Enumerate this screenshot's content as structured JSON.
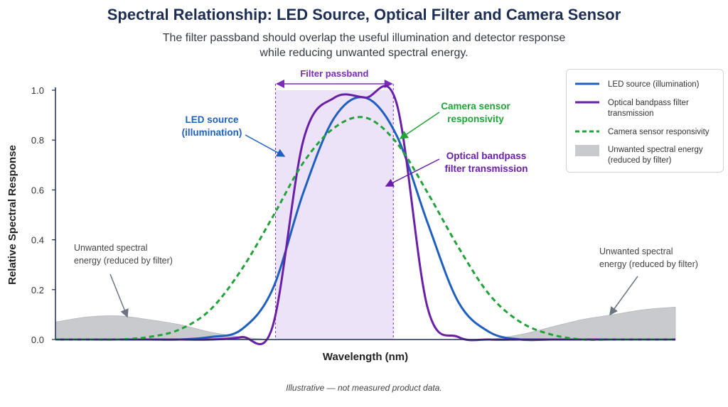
{
  "title": "Spectral Relationship: LED Source, Optical Filter and Camera Sensor",
  "subtitle_lines": [
    "The filter passband should overlap the useful illumination and detector response",
    "while reducing unwanted spectral energy."
  ],
  "footnote": "Illustrative — not measured product data.",
  "colors": {
    "led": "#1f5fbf",
    "filter": "#6a1fa8",
    "sensor": "#23a23a",
    "unwanted": "#c8cacd",
    "passband_fill": "#ece3f8",
    "passband_label": "#7a2bb8",
    "axis": "#1e2d52",
    "title": "#1e2d52"
  },
  "legend": {
    "items": [
      {
        "key": "led",
        "label": "LED source (illumination)",
        "style": "solid"
      },
      {
        "key": "filter",
        "label": "Optical bandpass filter transmission",
        "style": "solid"
      },
      {
        "key": "sensor",
        "label": "Camera sensor responsivity",
        "style": "dashed"
      },
      {
        "key": "unwanted",
        "label": "Unwanted spectral energy (reduced by filter)",
        "style": "area"
      }
    ]
  },
  "annotations": {
    "passband": "Filter passband",
    "led_lines": [
      "LED source",
      "(illumination)"
    ],
    "sensor_lines": [
      "Camera sensor",
      "responsivity"
    ],
    "filter_lines": [
      "Optical bandpass",
      "filter transmission"
    ],
    "unwanted_left_lines": [
      "Unwanted spectral",
      "energy (reduced by filter)"
    ],
    "unwanted_right_lines": [
      "Unwanted spectral",
      "energy (reduced by filter)"
    ]
  },
  "chart_data": {
    "type": "line",
    "title": "Spectral Relationship: LED Source, Optical Filter and Camera Sensor",
    "xlabel": "Wavelength (nm)",
    "ylabel": "Relative Spectral Response",
    "ylim": [
      0,
      1.0
    ],
    "yticks": [
      0.0,
      0.2,
      0.4,
      0.6,
      0.8,
      1.0
    ],
    "ytick_labels": [
      "0.0",
      "0.2",
      "0.4",
      "0.6",
      "0.8",
      "1.0"
    ],
    "x_tick_labels": [],
    "grid": false,
    "legend_position": "top-right",
    "x": [
      0.0,
      0.05,
      0.1,
      0.15,
      0.2,
      0.25,
      0.3,
      0.35,
      0.4,
      0.45,
      0.5,
      0.55,
      0.6,
      0.65,
      0.7,
      0.75,
      0.8,
      0.85,
      0.9,
      0.95,
      1.0
    ],
    "passband": [
      0.355,
      0.545
    ],
    "series": [
      {
        "name": "LED source (illumination)",
        "key": "led",
        "style": "solid",
        "values": [
          0.0,
          0.0,
          0.0,
          0.0,
          0.0,
          0.01,
          0.04,
          0.2,
          0.59,
          0.89,
          0.97,
          0.82,
          0.47,
          0.15,
          0.03,
          0.0,
          0.0,
          0.0,
          0.0,
          0.0,
          0.0
        ]
      },
      {
        "name": "Optical bandpass filter transmission",
        "key": "filter",
        "style": "solid",
        "values": [
          0.0,
          0.0,
          0.0,
          0.0,
          0.0,
          0.0,
          0.01,
          0.05,
          0.8,
          0.97,
          0.97,
          0.95,
          0.13,
          0.01,
          0.0,
          0.0,
          0.0,
          0.0,
          0.0,
          0.0,
          0.0
        ]
      },
      {
        "name": "Camera sensor responsivity",
        "key": "sensor",
        "style": "dashed",
        "values": [
          0.0,
          0.0,
          0.0,
          0.01,
          0.04,
          0.12,
          0.28,
          0.49,
          0.71,
          0.85,
          0.89,
          0.79,
          0.59,
          0.37,
          0.18,
          0.07,
          0.02,
          0.0,
          0.0,
          0.0,
          0.0
        ]
      },
      {
        "name": "Unwanted spectral energy (reduced by filter)",
        "key": "unwanted",
        "style": "area",
        "values": [
          0.07,
          0.09,
          0.095,
          0.08,
          0.06,
          0.03,
          0.01,
          0.0,
          0.0,
          0.0,
          0.0,
          0.0,
          0.0,
          0.0,
          0.0,
          0.02,
          0.05,
          0.08,
          0.1,
          0.12,
          0.13
        ]
      }
    ]
  }
}
